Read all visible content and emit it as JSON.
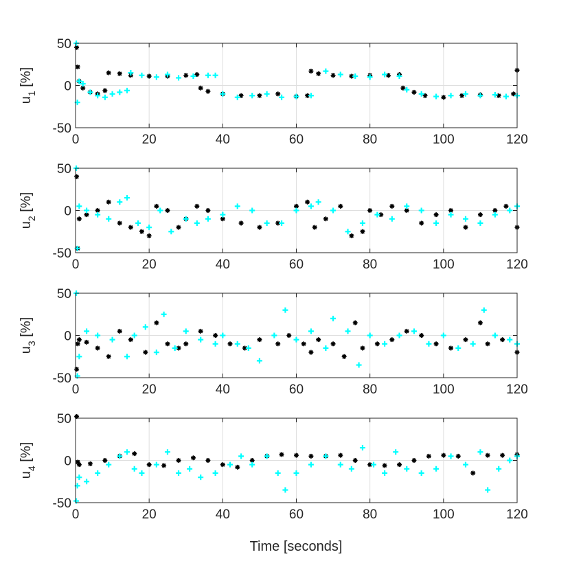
{
  "colors": {
    "series_a": "#000000",
    "series_b": "#00ffff",
    "grid": "#dfdfdf",
    "axis": "#262626"
  },
  "xlabel": "Time [seconds]",
  "chart_data": [
    {
      "type": "scatter",
      "ylabel_main": "u",
      "ylabel_sub": "1",
      "ylabel_unit": "[%]",
      "xlim": [
        0,
        120
      ],
      "ylim": [
        -50,
        50
      ],
      "xticks": [
        "0",
        "20",
        "40",
        "60",
        "80",
        "100",
        "120"
      ],
      "yticks": [
        "50",
        "0",
        "-50"
      ],
      "grid": true,
      "series": [
        {
          "marker": "star",
          "color": "#000000",
          "x": [
            0.3,
            0.6,
            1,
            2,
            4,
            6,
            8,
            9,
            12,
            15,
            20,
            25,
            30,
            33,
            34,
            36,
            40,
            45,
            50,
            55,
            60,
            63,
            64,
            66,
            70,
            75,
            80,
            85,
            88,
            89,
            92,
            95,
            100,
            105,
            110,
            115,
            119,
            120
          ],
          "y": [
            45,
            22,
            5,
            -3,
            -8,
            -10,
            -6,
            15,
            14,
            12,
            11,
            11,
            12,
            13,
            -3,
            -7,
            -10,
            -12,
            -12,
            -10,
            -13,
            -12,
            17,
            14,
            12,
            11,
            12,
            12,
            13,
            -3,
            -8,
            -12,
            -14,
            -12,
            -11,
            -12,
            -10,
            18
          ]
        },
        {
          "marker": "plus",
          "color": "#00ffff",
          "x": [
            0.2,
            0.5,
            1,
            2,
            4,
            6,
            8,
            10,
            12,
            14,
            15,
            18,
            22,
            25,
            28,
            32,
            36,
            38,
            40,
            44,
            48,
            52,
            56,
            60,
            64,
            68,
            72,
            76,
            80,
            84,
            88,
            90,
            94,
            98,
            102,
            106,
            110,
            114,
            117,
            120
          ],
          "y": [
            50,
            -20,
            5,
            2,
            -8,
            -12,
            -14,
            -10,
            -8,
            -6,
            15,
            12,
            10,
            13,
            9,
            11,
            12,
            12,
            -10,
            -14,
            -12,
            -10,
            -14,
            -13,
            -12,
            17,
            13,
            11,
            10,
            13,
            11,
            -5,
            -10,
            -13,
            -12,
            -10,
            -12,
            -11,
            -13,
            -12
          ]
        }
      ]
    },
    {
      "type": "scatter",
      "ylabel_main": "u",
      "ylabel_sub": "2",
      "ylabel_unit": "[%]",
      "xlim": [
        0,
        120
      ],
      "ylim": [
        -50,
        50
      ],
      "xticks": [
        "0",
        "20",
        "40",
        "60",
        "80",
        "100",
        "120"
      ],
      "yticks": [
        "50",
        "0",
        "-50"
      ],
      "grid": true,
      "series": [
        {
          "marker": "star",
          "color": "#000000",
          "x": [
            0.3,
            0.6,
            1,
            3,
            6,
            9,
            12,
            15,
            18,
            20,
            22,
            25,
            28,
            30,
            33,
            36,
            40,
            45,
            50,
            55,
            60,
            63,
            65,
            68,
            72,
            75,
            78,
            80,
            83,
            86,
            90,
            94,
            98,
            102,
            106,
            110,
            114,
            117,
            120
          ],
          "y": [
            40,
            -45,
            -10,
            -5,
            0,
            10,
            -15,
            -20,
            -25,
            -30,
            5,
            0,
            -20,
            -10,
            5,
            0,
            -10,
            -15,
            -20,
            -15,
            5,
            10,
            -20,
            -10,
            5,
            -30,
            -25,
            0,
            -5,
            5,
            0,
            -15,
            -5,
            0,
            -20,
            -5,
            0,
            5,
            -20
          ]
        },
        {
          "marker": "plus",
          "color": "#00ffff",
          "x": [
            0.2,
            0.5,
            1,
            3,
            6,
            9,
            12,
            14,
            17,
            20,
            23,
            26,
            30,
            33,
            36,
            40,
            44,
            48,
            52,
            56,
            60,
            64,
            66,
            70,
            74,
            78,
            82,
            86,
            90,
            94,
            98,
            102,
            106,
            110,
            114,
            118,
            120
          ],
          "y": [
            50,
            -45,
            5,
            0,
            -5,
            -10,
            10,
            15,
            -15,
            -20,
            0,
            -25,
            -10,
            -15,
            -10,
            -5,
            5,
            0,
            -15,
            -15,
            0,
            5,
            10,
            0,
            -25,
            -15,
            -5,
            -10,
            5,
            0,
            -15,
            -5,
            -10,
            -15,
            -5,
            0,
            5
          ]
        }
      ]
    },
    {
      "type": "scatter",
      "ylabel_main": "u",
      "ylabel_sub": "3",
      "ylabel_unit": "[%]",
      "xlim": [
        0,
        120
      ],
      "ylim": [
        -50,
        50
      ],
      "xticks": [
        "0",
        "20",
        "40",
        "60",
        "80",
        "100",
        "120"
      ],
      "yticks": [
        "50",
        "0",
        "-50"
      ],
      "grid": true,
      "series": [
        {
          "marker": "star",
          "color": "#000000",
          "x": [
            0.3,
            0.6,
            1,
            3,
            6,
            9,
            12,
            15,
            19,
            22,
            25,
            28,
            30,
            34,
            38,
            42,
            46,
            50,
            55,
            58,
            62,
            64,
            66,
            70,
            73,
            76,
            78,
            82,
            86,
            90,
            94,
            98,
            102,
            106,
            110,
            112,
            116,
            120
          ],
          "y": [
            -40,
            -10,
            -5,
            -8,
            -15,
            -25,
            5,
            -5,
            -20,
            15,
            -10,
            -15,
            -10,
            5,
            0,
            -10,
            -15,
            -5,
            -10,
            0,
            -10,
            -20,
            -5,
            -10,
            -25,
            15,
            -15,
            -10,
            -5,
            5,
            0,
            -10,
            -15,
            -5,
            15,
            -10,
            -5,
            -20
          ]
        },
        {
          "marker": "plus",
          "color": "#00ffff",
          "x": [
            0.2,
            0.5,
            1,
            3,
            6,
            10,
            14,
            16,
            19,
            22,
            24,
            27,
            30,
            34,
            38,
            40,
            44,
            47,
            50,
            54,
            57,
            60,
            64,
            68,
            70,
            74,
            77,
            80,
            84,
            88,
            92,
            96,
            100,
            104,
            108,
            111,
            114,
            118,
            120
          ],
          "y": [
            50,
            -48,
            -25,
            5,
            0,
            -5,
            -25,
            0,
            10,
            -20,
            25,
            -15,
            5,
            -5,
            -10,
            0,
            -10,
            -15,
            -30,
            0,
            30,
            -5,
            5,
            -15,
            20,
            5,
            -35,
            0,
            -10,
            0,
            5,
            -10,
            0,
            -15,
            -10,
            30,
            0,
            -5,
            -10
          ]
        }
      ]
    },
    {
      "type": "scatter",
      "ylabel_main": "u",
      "ylabel_sub": "4",
      "ylabel_unit": "[%]",
      "xlim": [
        0,
        120
      ],
      "ylim": [
        -50,
        50
      ],
      "xticks": [
        "0",
        "20",
        "40",
        "60",
        "80",
        "100",
        "120"
      ],
      "yticks": [
        "50",
        "0",
        "-50"
      ],
      "grid": true,
      "series": [
        {
          "marker": "star",
          "color": "#000000",
          "x": [
            0.3,
            0.6,
            1,
            4,
            8,
            12,
            16,
            20,
            24,
            28,
            32,
            36,
            40,
            44,
            48,
            52,
            56,
            60,
            64,
            68,
            72,
            76,
            80,
            84,
            88,
            92,
            96,
            100,
            104,
            108,
            112,
            116,
            120
          ],
          "y": [
            52,
            -2,
            -5,
            -4,
            0,
            5,
            8,
            -5,
            -6,
            0,
            3,
            0,
            -5,
            -8,
            0,
            5,
            7,
            6,
            5,
            5,
            6,
            0,
            -5,
            -6,
            -5,
            0,
            5,
            6,
            5,
            -15,
            6,
            6,
            7
          ]
        },
        {
          "marker": "plus",
          "color": "#00ffff",
          "x": [
            0.2,
            0.5,
            1,
            3,
            6,
            9,
            12,
            14,
            16,
            18,
            22,
            25,
            28,
            31,
            34,
            38,
            42,
            45,
            48,
            52,
            55,
            57,
            60,
            64,
            68,
            72,
            75,
            78,
            81,
            84,
            87,
            90,
            94,
            98,
            102,
            106,
            110,
            112,
            115,
            118,
            120
          ],
          "y": [
            -48,
            -30,
            -20,
            -25,
            -15,
            -5,
            5,
            10,
            -10,
            -15,
            -5,
            10,
            -15,
            -10,
            -20,
            -15,
            -5,
            5,
            -5,
            5,
            -15,
            -35,
            -15,
            -5,
            5,
            -5,
            -10,
            15,
            -5,
            -15,
            10,
            -10,
            -15,
            -10,
            5,
            -5,
            10,
            -35,
            -10,
            0,
            5
          ]
        }
      ]
    }
  ]
}
